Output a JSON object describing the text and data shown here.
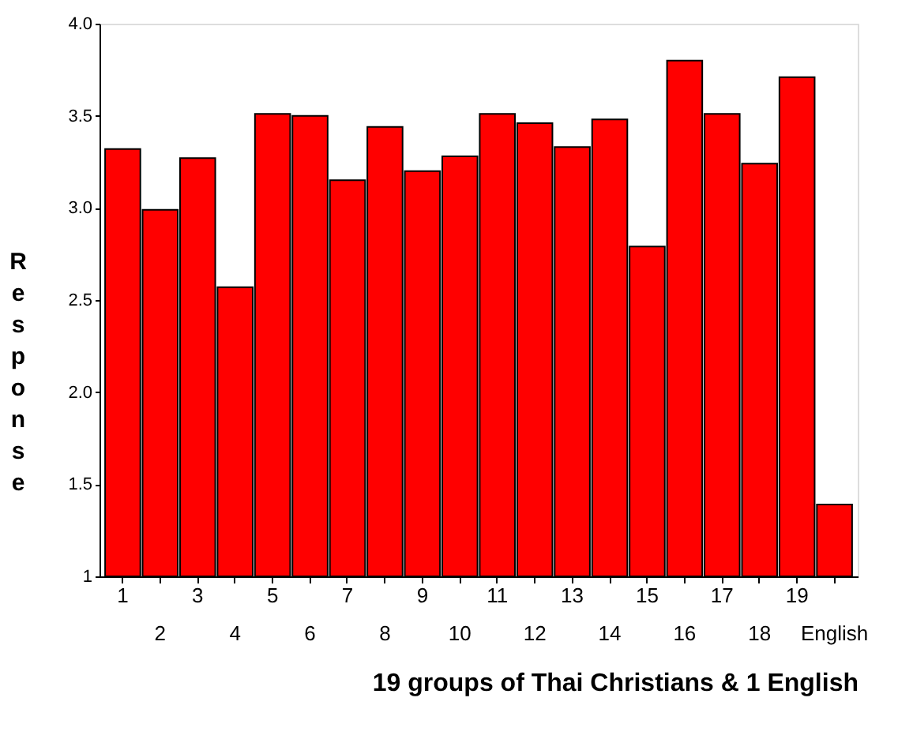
{
  "chart_data": {
    "type": "bar",
    "xlabel": "19 groups of Thai Christians  & 1 English",
    "ylabel": "Response",
    "categories": [
      "1",
      "2",
      "3",
      "4",
      "5",
      "6",
      "7",
      "8",
      "9",
      "10",
      "11",
      "12",
      "13",
      "14",
      "15",
      "16",
      "17",
      "18",
      "19",
      "English"
    ],
    "values": [
      3.32,
      2.99,
      3.27,
      2.57,
      3.51,
      3.5,
      3.15,
      3.44,
      3.2,
      3.28,
      3.51,
      3.46,
      3.33,
      3.48,
      2.79,
      3.8,
      3.51,
      3.24,
      3.71,
      1.39
    ],
    "color": "#ff0000",
    "ylim": [
      1,
      4
    ],
    "yticks": [
      1,
      {
        "value": 1.5,
        "label": "1.5"
      },
      {
        "value": 2,
        "label": "2.0"
      },
      {
        "value": 2.5,
        "label": "2.5"
      },
      {
        "value": 3,
        "label": "3.0"
      },
      {
        "value": 3.5,
        "label": "3.5"
      },
      {
        "value": 4,
        "label": "4.0"
      }
    ],
    "grid": false
  }
}
